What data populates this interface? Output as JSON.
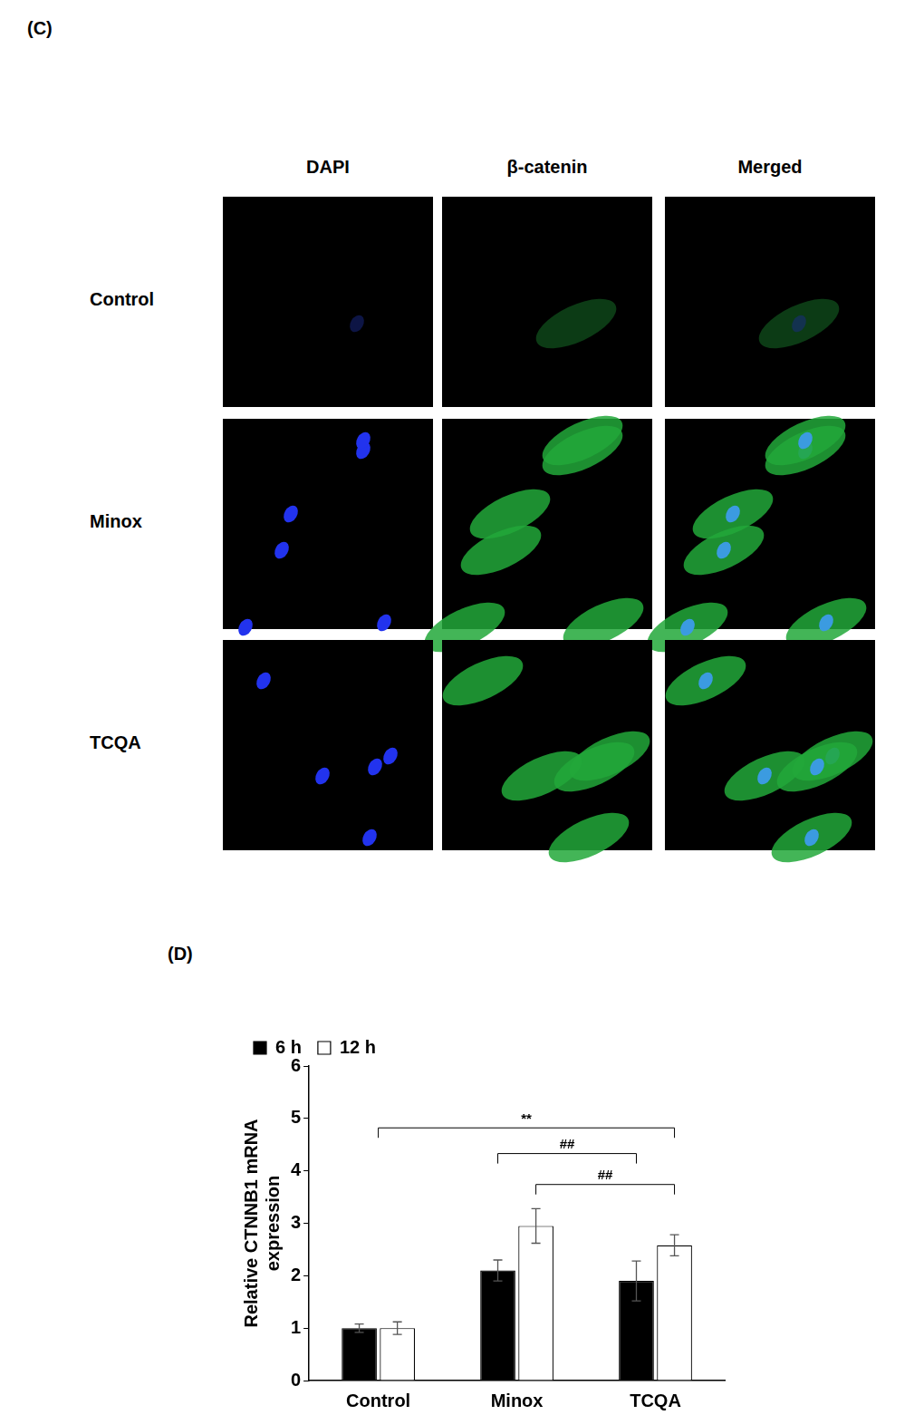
{
  "panel_c": {
    "label": "(C)",
    "columns": [
      "DAPI",
      "β-catenin",
      "Merged"
    ],
    "rows": [
      "Control",
      "Minox",
      "TCQA"
    ]
  },
  "panel_d": {
    "label": "(D)"
  },
  "chart_data": {
    "type": "bar",
    "y_label": [
      "Relative CTNNB1 mRNA",
      "expression"
    ],
    "categories": [
      "Control",
      "Minox",
      "TCQA"
    ],
    "series": [
      {
        "name": "6 h",
        "color": "#000000",
        "values": [
          1.0,
          2.1,
          1.9
        ],
        "errors": [
          0.08,
          0.2,
          0.38
        ]
      },
      {
        "name": "12 h",
        "color": "#ffffff",
        "values": [
          1.0,
          2.95,
          2.58
        ],
        "errors": [
          0.12,
          0.33,
          0.2
        ]
      }
    ],
    "ylim": [
      0,
      6
    ],
    "yticks": [
      0,
      1,
      2,
      3,
      4,
      5,
      6
    ],
    "grid": false,
    "legend": "upper left",
    "annotations": [
      {
        "text": "**",
        "y": 4.82,
        "from": {
          "category": "Control"
        },
        "to": {
          "category": "TCQA",
          "series": "12 h"
        }
      },
      {
        "text": "##",
        "y": 4.33,
        "from": {
          "category": "Minox",
          "series": "6 h"
        },
        "to": {
          "category": "TCQA",
          "series": "6 h"
        }
      },
      {
        "text": "##",
        "y": 3.74,
        "from": {
          "category": "Minox",
          "series": "12 h"
        },
        "to": {
          "category": "TCQA",
          "series": "12 h"
        }
      }
    ]
  }
}
